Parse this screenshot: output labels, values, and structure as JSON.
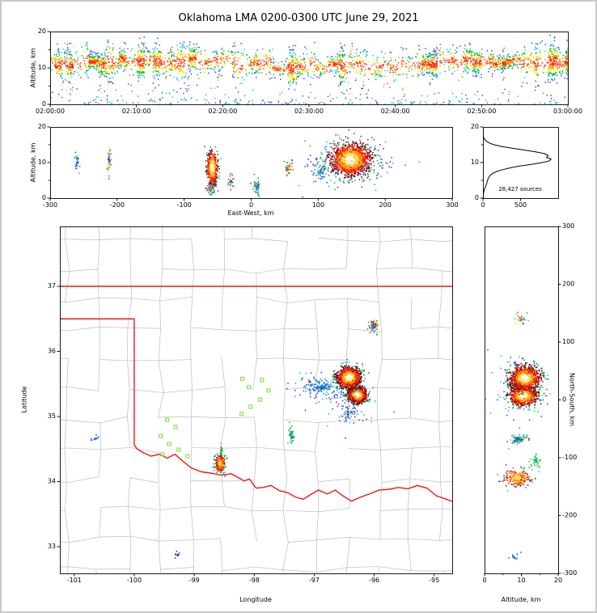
{
  "title": "Oklahoma LMA 0200-0300 UTC June 29, 2021",
  "colors": {
    "background": "#ffffff",
    "figure_border": "#c9c9c9",
    "axis": "#000000",
    "county_lines": "#bdbdbd",
    "state_border": "#ff0000",
    "station_marker": "#6fe032",
    "histogram_line": "#000000"
  },
  "styles": {
    "hot": {
      "type": "radial",
      "palette": [
        "#ffffff",
        "#ffe066",
        "#ff9900",
        "#ff2200",
        "#a50000",
        "#600000",
        "#00a800",
        "#00b4ff",
        "#2233dd"
      ],
      "thresholds": [
        0.45,
        0.8,
        1.15,
        1.55,
        1.95,
        2.35,
        2.75,
        3.1
      ]
    },
    "hot2": {
      "type": "radial",
      "palette": [
        "#ffe066",
        "#ff9900",
        "#ff2200",
        "#990000",
        "#00a800",
        "#00b4ff",
        "#2233dd"
      ],
      "thresholds": [
        0.5,
        0.95,
        1.45,
        1.95,
        2.45,
        2.9
      ]
    },
    "band": {
      "type": "radial",
      "palette": [
        "#ff2200",
        "#ff9900",
        "#ffee00",
        "#00bb00",
        "#00c8ff",
        "#2233dd"
      ],
      "thresholds": [
        0.55,
        0.95,
        1.35,
        1.85,
        2.35
      ]
    },
    "mix": {
      "type": "choice",
      "palette": [
        "#ff2200",
        "#ff9900",
        "#ffee00",
        "#00bb00",
        "#00c8ff",
        "#2233ff",
        "#8822dd"
      ]
    },
    "cool": {
      "type": "choice",
      "palette": [
        "#2233dd",
        "#00b4ff",
        "#00bb44",
        "#7722cc",
        "#2233dd",
        "#00b4ff"
      ]
    },
    "blue": {
      "type": "choice",
      "palette": [
        "#1122cc",
        "#2255ff",
        "#00aaff"
      ]
    },
    "green": {
      "type": "choice",
      "palette": [
        "#00aa00",
        "#33cc33",
        "#00cc88"
      ]
    },
    "greencool": {
      "type": "choice",
      "palette": [
        "#00aa00",
        "#33cc33",
        "#00b4ff",
        "#2233dd"
      ]
    }
  },
  "chart_data": [
    {
      "id": "time_height",
      "type": "scatter",
      "title": "",
      "xlabel": "",
      "ylabel": "Altitude, km",
      "xlim": [
        0,
        3600
      ],
      "ylim": [
        0,
        20
      ],
      "xticks": {
        "values": [
          0,
          600,
          1200,
          1800,
          2400,
          3000,
          3600
        ],
        "labels": [
          "02:00:00",
          "02:10:00",
          "02:20:00",
          "02:30:00",
          "02:40:00",
          "02:50:00",
          "03:00:00"
        ]
      },
      "yticks": {
        "values": [
          0,
          10,
          20
        ],
        "labels": [
          "0",
          "10",
          "20"
        ]
      },
      "yminor": [
        5,
        15
      ],
      "description": "Lightning source altitude vs time, dense band 8-14 km across the full hour",
      "gen": {
        "seed": 20210629,
        "alt_mean": 11.1,
        "alt_wave": 1.0,
        "alt_sd": 1.9,
        "burst_min_s": 18,
        "burst_max_s": 70,
        "density_max": 3.2,
        "column_prob": 0.17,
        "column_pts": 13,
        "low_n": 240
      }
    },
    {
      "id": "ew_altitude",
      "type": "scatter",
      "xlabel": "East-West, km",
      "ylabel": "Altitude, km",
      "xlim": [
        -300,
        300
      ],
      "ylim": [
        0,
        20
      ],
      "xticks": {
        "values": [
          -300,
          -200,
          -100,
          0,
          100,
          200,
          300
        ],
        "labels": [
          "-300",
          "-200",
          "-100",
          "0",
          "100",
          "200",
          "300"
        ]
      },
      "yticks": {
        "values": [
          0,
          10,
          20
        ],
        "labels": [
          "0",
          "10",
          "20"
        ]
      },
      "yminor": [
        5,
        15
      ],
      "seed": 77,
      "clusters": [
        {
          "x": 150,
          "y": 9.5,
          "sx": 38,
          "sy": 4.2,
          "n": 260,
          "style": "cool"
        },
        {
          "x": 103,
          "y": 7.5,
          "sx": 9,
          "sy": 1.8,
          "n": 55,
          "style": "cool"
        },
        {
          "x": 8,
          "y": 3,
          "sx": 3,
          "sy": 1.8,
          "n": 45,
          "style": "greencool"
        },
        {
          "x": -30,
          "y": 4.5,
          "sx": 2.5,
          "sy": 1.4,
          "n": 40,
          "style": "mix"
        },
        {
          "x": 55,
          "y": 8.5,
          "sx": 3.5,
          "sy": 1.3,
          "n": 65,
          "style": "mix"
        },
        {
          "x": -212,
          "y": 10.5,
          "sx": 2.5,
          "sy": 2.2,
          "n": 55,
          "style": "mix"
        },
        {
          "x": -260,
          "y": 10,
          "sx": 2.5,
          "sy": 1.7,
          "n": 35,
          "style": "cool"
        },
        {
          "x": -59,
          "y": 3.2,
          "sx": 3.5,
          "sy": 1.5,
          "n": 150,
          "style": "mix"
        },
        {
          "x": -58,
          "y": 8.5,
          "sx": 4.5,
          "sy": 2.6,
          "n": 760,
          "style": "hot"
        },
        {
          "x": 148,
          "y": 10.8,
          "sx": 16,
          "sy": 2.4,
          "n": 2600,
          "style": "hot"
        }
      ]
    },
    {
      "id": "altitude_histogram",
      "type": "line",
      "xlabel": "",
      "ylabel": "",
      "annotation": "28,427 sources",
      "xlim": [
        0,
        1000
      ],
      "ylim": [
        0,
        20
      ],
      "xticks": {
        "values": [
          0,
          500
        ],
        "labels": [
          "0",
          "500"
        ]
      },
      "yticks": {
        "values": [
          0,
          10,
          20
        ],
        "labels": [
          "0",
          "10",
          "20"
        ]
      },
      "yminor": [
        5,
        15
      ],
      "altitudes_km": [
        0,
        0.5,
        1,
        1.5,
        2,
        2.5,
        3,
        3.5,
        4,
        4.5,
        5,
        5.5,
        6,
        6.5,
        7,
        7.5,
        8,
        8.5,
        9,
        9.5,
        10,
        10.5,
        11,
        11.5,
        12,
        12.5,
        13,
        13.5,
        14,
        14.5,
        15,
        15.5,
        16,
        16.5,
        17,
        17.5,
        18,
        18.5,
        19,
        19.5,
        20
      ],
      "counts": [
        2,
        4,
        6,
        9,
        13,
        19,
        30,
        40,
        48,
        55,
        62,
        70,
        82,
        102,
        132,
        185,
        260,
        360,
        480,
        645,
        790,
        885,
        905,
        845,
        865,
        820,
        700,
        555,
        395,
        255,
        148,
        84,
        45,
        22,
        10,
        4,
        2,
        1,
        0,
        0,
        0
      ]
    },
    {
      "id": "plan_view_map",
      "type": "scatter",
      "xlabel": "Longitude",
      "ylabel": "Latitude",
      "xlim": [
        -101.24,
        -94.7
      ],
      "ylim": [
        32.59,
        37.92
      ],
      "xticks": {
        "values": [
          -101,
          -100,
          -99,
          -98,
          -97,
          -96,
          -95
        ],
        "labels": [
          "-101",
          "-100",
          "-99",
          "-98",
          "-97",
          "-96",
          "-95"
        ]
      },
      "yticks": {
        "values": [
          33,
          34,
          35,
          36,
          37
        ],
        "labels": [
          "33",
          "34",
          "35",
          "36",
          "37"
        ]
      },
      "county_grid": {
        "seed": 7,
        "lon_step": 0.52,
        "lat_step": 0.46,
        "jitter": 0.1,
        "skip": 0.2
      },
      "state_border": {
        "north_lat": 37.0,
        "panhandle": [
          [
            -101.4,
            36.5
          ],
          [
            -100.0,
            36.5
          ],
          [
            -100.0,
            34.56
          ]
        ],
        "red_river": [
          [
            -100.0,
            34.56
          ],
          [
            -99.95,
            34.5
          ],
          [
            -99.84,
            34.44
          ],
          [
            -99.72,
            34.39
          ],
          [
            -99.58,
            34.42
          ],
          [
            -99.45,
            34.36
          ],
          [
            -99.32,
            34.42
          ],
          [
            -99.21,
            34.33
          ],
          [
            -99.05,
            34.21
          ],
          [
            -98.88,
            34.15
          ],
          [
            -98.72,
            34.13
          ],
          [
            -98.55,
            34.1
          ],
          [
            -98.38,
            34.12
          ],
          [
            -98.17,
            34.01
          ],
          [
            -98.08,
            34.04
          ],
          [
            -97.97,
            33.9
          ],
          [
            -97.85,
            33.91
          ],
          [
            -97.72,
            33.94
          ],
          [
            -97.58,
            33.86
          ],
          [
            -97.44,
            33.83
          ],
          [
            -97.31,
            33.76
          ],
          [
            -97.18,
            33.73
          ],
          [
            -97.06,
            33.8
          ],
          [
            -96.93,
            33.87
          ],
          [
            -96.78,
            33.81
          ],
          [
            -96.65,
            33.87
          ],
          [
            -96.52,
            33.78
          ],
          [
            -96.38,
            33.7
          ],
          [
            -96.23,
            33.76
          ],
          [
            -96.08,
            33.81
          ],
          [
            -95.92,
            33.87
          ],
          [
            -95.76,
            33.88
          ],
          [
            -95.6,
            33.91
          ],
          [
            -95.44,
            33.89
          ],
          [
            -95.28,
            33.94
          ],
          [
            -95.12,
            33.9
          ],
          [
            -94.96,
            33.78
          ],
          [
            -94.8,
            33.73
          ],
          [
            -94.6,
            33.66
          ]
        ]
      },
      "stations": [
        [
          -98.2,
          35.58
        ],
        [
          -98.09,
          35.45
        ],
        [
          -97.87,
          35.56
        ],
        [
          -97.76,
          35.4
        ],
        [
          -97.9,
          35.26
        ],
        [
          -98.06,
          35.15
        ],
        [
          -98.21,
          35.04
        ],
        [
          -99.45,
          34.95
        ],
        [
          -99.31,
          34.84
        ],
        [
          -99.56,
          34.7
        ],
        [
          -99.42,
          34.58
        ],
        [
          -99.26,
          34.49
        ],
        [
          -99.53,
          34.42
        ],
        [
          -99.11,
          34.39
        ]
      ],
      "seed": 99,
      "clusters": [
        {
          "x": -96.85,
          "y": 35.45,
          "sx": 0.28,
          "sy": 0.13,
          "n": 240,
          "style": "cool"
        },
        {
          "x": -96.4,
          "y": 35.05,
          "sx": 0.22,
          "sy": 0.16,
          "n": 80,
          "style": "cool"
        },
        {
          "x": -96.0,
          "y": 36.4,
          "sx": 0.05,
          "sy": 0.055,
          "n": 120,
          "style": "mix"
        },
        {
          "x": -97.38,
          "y": 34.72,
          "sx": 0.025,
          "sy": 0.1,
          "n": 70,
          "style": "greencool"
        },
        {
          "x": -98.55,
          "y": 34.45,
          "sx": 0.012,
          "sy": 0.08,
          "n": 28,
          "style": "green"
        },
        {
          "x": -98.57,
          "y": 34.28,
          "sx": 0.05,
          "sy": 0.07,
          "n": 360,
          "style": "hot2"
        },
        {
          "x": -100.65,
          "y": 34.66,
          "sx": 0.04,
          "sy": 0.025,
          "n": 14,
          "style": "blue"
        },
        {
          "x": -99.28,
          "y": 32.87,
          "sx": 0.03,
          "sy": 0.03,
          "n": 12,
          "style": "blue"
        },
        {
          "x": -96.28,
          "y": 35.33,
          "sx": 0.085,
          "sy": 0.065,
          "n": 1700,
          "style": "hot"
        },
        {
          "x": -96.42,
          "y": 35.6,
          "sx": 0.105,
          "sy": 0.085,
          "n": 2400,
          "style": "hot"
        }
      ]
    },
    {
      "id": "ns_altitude",
      "type": "scatter",
      "xlabel": "Altitude, km",
      "ylabel": "North-South, km",
      "xlim": [
        0,
        20
      ],
      "ylim": [
        -300,
        300
      ],
      "xticks": {
        "values": [
          0,
          10,
          20
        ],
        "labels": [
          "0",
          "10",
          "20"
        ]
      },
      "yticks": {
        "values": [
          -300,
          -200,
          -100,
          0,
          100,
          200,
          300
        ],
        "labels": [
          "-300",
          "-200",
          "-100",
          "0",
          "100",
          "200",
          "300"
        ]
      },
      "xminor": [
        5,
        15
      ],
      "seed": 55,
      "clusters": [
        {
          "x": 10,
          "y": 22,
          "sx": 3.8,
          "sy": 30,
          "n": 260,
          "style": "cool"
        },
        {
          "x": 10,
          "y": 140,
          "sx": 1.5,
          "sy": 6,
          "n": 40,
          "style": "mix"
        },
        {
          "x": 9,
          "y": -68,
          "sx": 1.5,
          "sy": 5,
          "n": 100,
          "style": "greencool"
        },
        {
          "x": 14,
          "y": -105,
          "sx": 1.0,
          "sy": 7,
          "n": 50,
          "style": "green"
        },
        {
          "x": 8,
          "y": -272,
          "sx": 1.4,
          "sy": 4,
          "n": 16,
          "style": "blue"
        },
        {
          "x": 9,
          "y": -135,
          "sx": 2.2,
          "sy": 9,
          "n": 330,
          "style": "hot2"
        },
        {
          "x": 10.5,
          "y": 7,
          "sx": 2.0,
          "sy": 9,
          "n": 1500,
          "style": "hot"
        },
        {
          "x": 11,
          "y": 38,
          "sx": 2.2,
          "sy": 11,
          "n": 1900,
          "style": "hot"
        }
      ]
    }
  ]
}
